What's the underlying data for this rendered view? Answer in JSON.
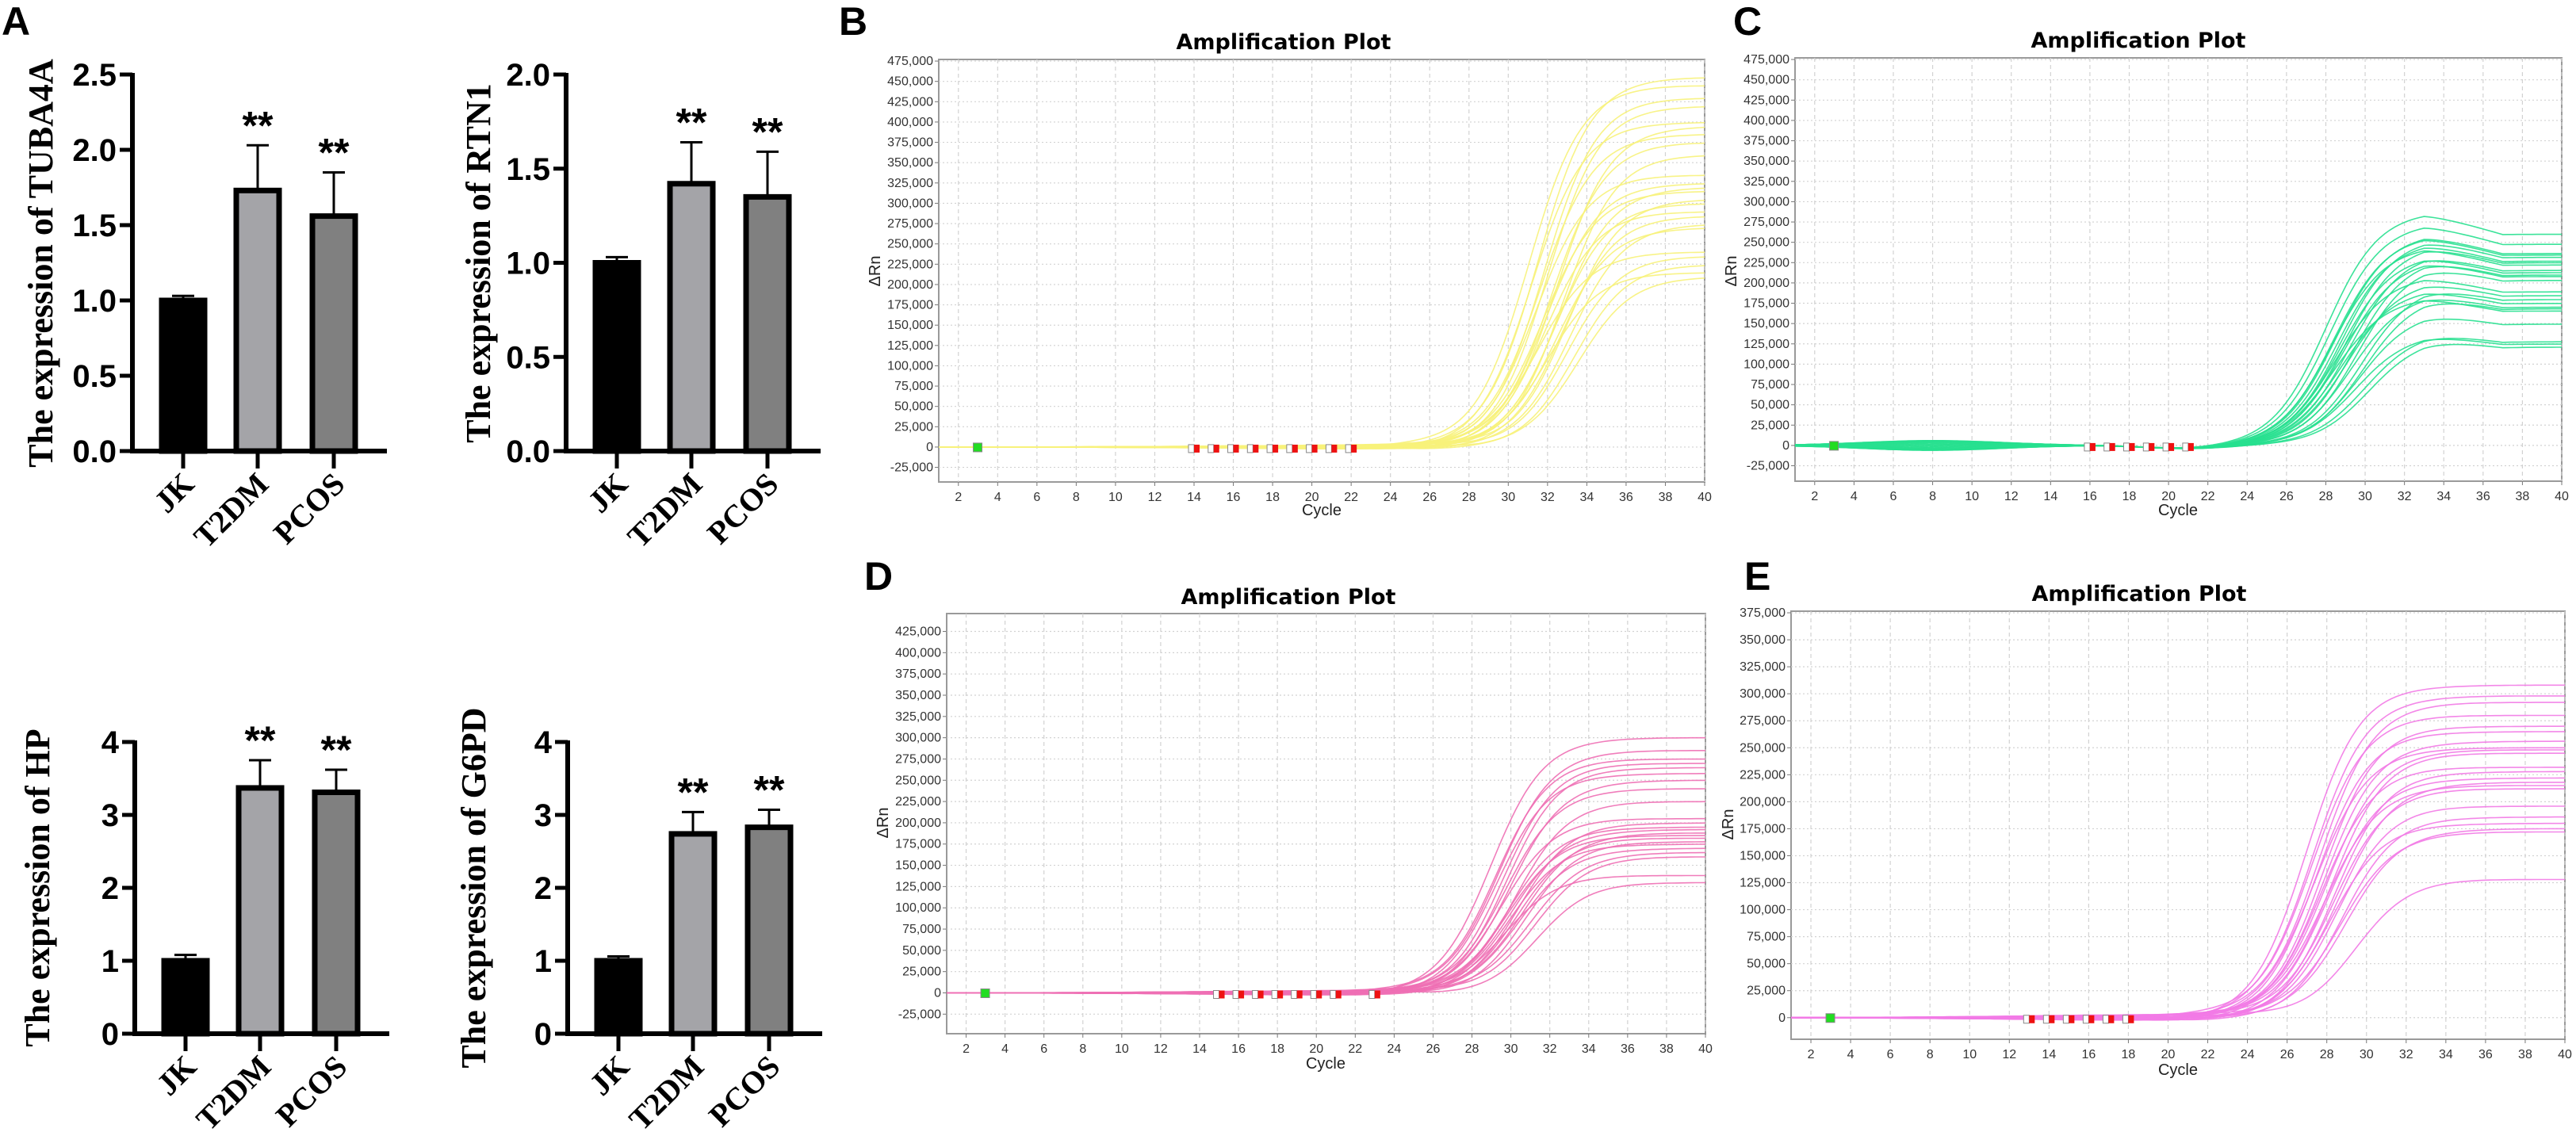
{
  "panel_letters": [
    "A",
    "B",
    "C",
    "D",
    "E"
  ],
  "chart_data": [
    {
      "type": "bar",
      "panel": "A",
      "ylabel": "The expression of TUBA4A",
      "categories": [
        "JK",
        "T2DM",
        "PCOS"
      ],
      "values": [
        1.0,
        1.73,
        1.56
      ],
      "errors": [
        0.03,
        0.3,
        0.29
      ],
      "significance": [
        "",
        "**",
        "**"
      ],
      "ylim": [
        0,
        2.5
      ],
      "yticks": [
        0.0,
        0.5,
        1.0,
        1.5,
        2.0,
        2.5
      ],
      "tick_decimals": 1,
      "colors": [
        "#000000",
        "#a4a4a8",
        "#808080"
      ]
    },
    {
      "type": "bar",
      "panel": "A",
      "ylabel": "The expression of RTN1",
      "categories": [
        "JK",
        "T2DM",
        "PCOS"
      ],
      "values": [
        1.0,
        1.42,
        1.35
      ],
      "errors": [
        0.03,
        0.22,
        0.24
      ],
      "significance": [
        "",
        "**",
        "**"
      ],
      "ylim": [
        0,
        2.0
      ],
      "yticks": [
        0.0,
        0.5,
        1.0,
        1.5,
        2.0
      ],
      "tick_decimals": 1,
      "colors": [
        "#000000",
        "#a4a4a8",
        "#808080"
      ]
    },
    {
      "type": "bar",
      "panel": "A",
      "ylabel": "The expression of HP",
      "categories": [
        "JK",
        "T2DM",
        "PCOS"
      ],
      "values": [
        1.0,
        3.37,
        3.31
      ],
      "errors": [
        0.08,
        0.38,
        0.31
      ],
      "significance": [
        "",
        "**",
        "**"
      ],
      "ylim": [
        0,
        4
      ],
      "yticks": [
        0,
        1,
        2,
        3,
        4
      ],
      "tick_decimals": 0,
      "colors": [
        "#000000",
        "#a4a4a8",
        "#808080"
      ]
    },
    {
      "type": "bar",
      "panel": "A",
      "ylabel": "The expression of G6PD",
      "categories": [
        "JK",
        "T2DM",
        "PCOS"
      ],
      "values": [
        1.0,
        2.74,
        2.83
      ],
      "errors": [
        0.06,
        0.3,
        0.24
      ],
      "significance": [
        "",
        "**",
        "**"
      ],
      "ylim": [
        0,
        4
      ],
      "yticks": [
        0,
        1,
        2,
        3,
        4
      ],
      "tick_decimals": 0,
      "colors": [
        "#000000",
        "#a4a4a8",
        "#808080"
      ]
    },
    {
      "type": "line",
      "panel": "B",
      "title": "Amplification Plot",
      "xlabel": "Cycle",
      "ylabel": "ΔRn",
      "xlim": [
        1,
        40
      ],
      "ylim": [
        -43000,
        477000
      ],
      "xticks": [
        2,
        4,
        6,
        8,
        10,
        12,
        14,
        16,
        18,
        20,
        22,
        24,
        26,
        28,
        30,
        32,
        34,
        36,
        38,
        40
      ],
      "yticks": [
        -25000,
        0,
        25000,
        50000,
        75000,
        100000,
        125000,
        150000,
        175000,
        200000,
        225000,
        250000,
        275000,
        300000,
        325000,
        350000,
        375000,
        400000,
        425000,
        450000,
        475000
      ],
      "grid": true,
      "color": "#f7f27a",
      "curve_shape": "sigmoid",
      "plateaus_k": [
        455,
        445,
        430,
        420,
        400,
        395,
        385,
        375,
        360,
        335,
        325,
        320,
        315,
        305,
        300,
        290,
        285,
        275,
        270,
        240,
        235,
        225,
        215,
        210
      ],
      "midpoints": [
        31.5,
        31.0,
        31.8,
        32.0,
        31.2,
        32.5,
        31.6,
        32.2,
        32.8,
        31.4,
        32.0,
        32.6,
        31.8,
        33.0,
        32.4,
        31.9,
        32.8,
        33.2,
        32.5,
        31.5,
        33.0,
        33.4,
        32.0,
        33.6
      ],
      "baseline_marker_cycle": 3,
      "threshold_marker_cycles": [
        14,
        15,
        16,
        17,
        18,
        19,
        20,
        21,
        22
      ]
    },
    {
      "type": "line",
      "panel": "C",
      "title": "Amplification Plot",
      "xlabel": "Cycle",
      "ylabel": "ΔRn",
      "xlim": [
        1,
        40
      ],
      "ylim": [
        -44000,
        477000
      ],
      "xticks": [
        2,
        4,
        6,
        8,
        10,
        12,
        14,
        16,
        18,
        20,
        22,
        24,
        26,
        28,
        30,
        32,
        34,
        36,
        38,
        40
      ],
      "yticks": [
        -25000,
        0,
        25000,
        50000,
        75000,
        100000,
        125000,
        150000,
        175000,
        200000,
        225000,
        250000,
        275000,
        300000,
        325000,
        350000,
        375000,
        400000,
        425000,
        450000,
        475000
      ],
      "grid": true,
      "color": "#27e08f",
      "curve_shape": "sigmoid-overshoot",
      "plateaus_k": [
        275,
        262,
        250,
        248,
        245,
        240,
        238,
        235,
        228,
        225,
        222,
        220,
        215,
        200,
        195,
        190,
        185,
        180,
        178,
        175,
        158,
        135,
        132,
        128
      ],
      "midpoints": [
        28.0,
        28.2,
        28.5,
        28.4,
        28.8,
        28.6,
        29.0,
        28.3,
        29.2,
        28.7,
        29.4,
        28.9,
        29.6,
        28.5,
        29.1,
        29.8,
        28.8,
        29.3,
        29.9,
        28.4,
        29.7,
        30.0,
        29.5,
        30.2
      ],
      "baseline_marker_cycle": 3,
      "threshold_marker_cycles": [
        16,
        17,
        18,
        19,
        20,
        21
      ]
    },
    {
      "type": "line",
      "panel": "D",
      "title": "Amplification Plot",
      "xlabel": "Cycle",
      "ylabel": "ΔRn",
      "xlim": [
        1,
        40
      ],
      "ylim": [
        -48000,
        446000
      ],
      "xticks": [
        2,
        4,
        6,
        8,
        10,
        12,
        14,
        16,
        18,
        20,
        22,
        24,
        26,
        28,
        30,
        32,
        34,
        36,
        38,
        40
      ],
      "yticks": [
        -25000,
        0,
        25000,
        50000,
        75000,
        100000,
        125000,
        150000,
        175000,
        200000,
        225000,
        250000,
        275000,
        300000,
        325000,
        350000,
        375000,
        400000,
        425000
      ],
      "grid": true,
      "color": "#ee6fb4",
      "curve_shape": "sigmoid",
      "plateaus_k": [
        300,
        285,
        275,
        270,
        265,
        258,
        250,
        240,
        225,
        205,
        200,
        195,
        192,
        188,
        185,
        182,
        178,
        175,
        170,
        165,
        160,
        138,
        130
      ],
      "midpoints": [
        29.0,
        29.4,
        29.2,
        29.6,
        29.8,
        29.3,
        30.0,
        29.7,
        30.2,
        29.5,
        30.4,
        29.9,
        30.1,
        30.6,
        29.8,
        30.3,
        30.8,
        30.0,
        30.5,
        31.0,
        31.2,
        29.6,
        31.4
      ],
      "baseline_marker_cycle": 3,
      "threshold_marker_cycles": [
        15,
        16,
        17,
        18,
        19,
        20,
        21,
        23
      ]
    },
    {
      "type": "line",
      "panel": "E",
      "title": "Amplification Plot",
      "xlabel": "Cycle",
      "ylabel": "ΔRn",
      "xlim": [
        1,
        40
      ],
      "ylim": [
        -20000,
        376500
      ],
      "xticks": [
        2,
        4,
        6,
        8,
        10,
        12,
        14,
        16,
        18,
        20,
        22,
        24,
        26,
        28,
        30,
        32,
        34,
        36,
        38,
        40
      ],
      "yticks": [
        0,
        25000,
        50000,
        75000,
        100000,
        125000,
        150000,
        175000,
        200000,
        225000,
        250000,
        275000,
        300000,
        325000,
        350000,
        375000
      ],
      "grid": true,
      "color": "#f27ae6",
      "curve_shape": "sigmoid",
      "plateaus_k": [
        308,
        298,
        292,
        280,
        270,
        265,
        256,
        250,
        248,
        245,
        232,
        228,
        222,
        218,
        215,
        212,
        196,
        186,
        180,
        175,
        172,
        128
      ],
      "midpoints": [
        27.0,
        27.3,
        27.6,
        27.2,
        27.8,
        27.5,
        27.9,
        27.4,
        28.0,
        28.2,
        27.7,
        28.4,
        28.1,
        28.6,
        27.9,
        28.3,
        28.5,
        28.8,
        28.2,
        29.0,
        28.7,
        29.4
      ],
      "baseline_marker_cycle": 3,
      "threshold_marker_cycles": [
        13,
        14,
        15,
        16,
        17,
        18
      ]
    }
  ]
}
